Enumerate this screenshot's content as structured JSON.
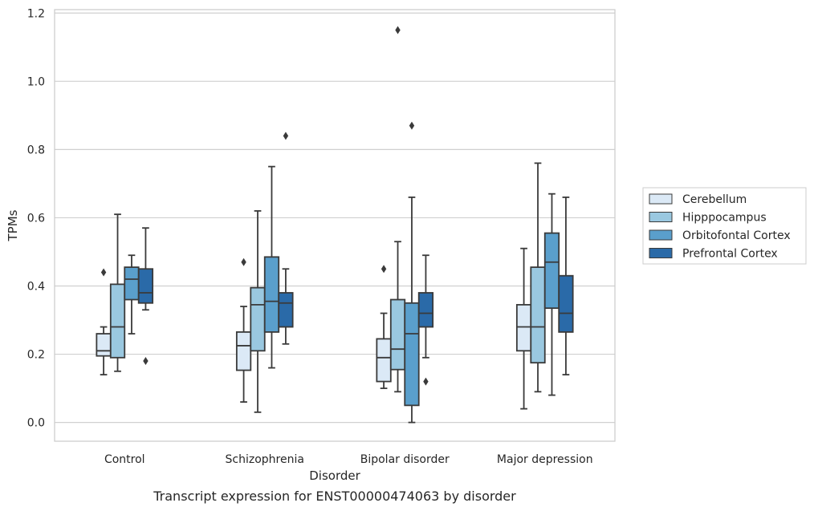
{
  "chart_data": {
    "type": "box",
    "title": "",
    "caption": "Transcript expression for ENST00000474063 by disorder",
    "xlabel": "Disorder",
    "ylabel": "TPMs",
    "ylim": [
      -0.055,
      1.21
    ],
    "yticks": [
      0.0,
      0.2,
      0.4,
      0.6,
      0.8,
      1.0,
      1.2
    ],
    "ytick_labels": [
      "0.0",
      "0.2",
      "0.4",
      "0.6",
      "0.8",
      "1.0",
      "1.2"
    ],
    "grid": "horizontal",
    "legend_position": "right, outside plot",
    "categories": [
      "Control",
      "Schizophrenia",
      "Bipolar disorder",
      "Major depression"
    ],
    "series": [
      {
        "name": "Cerebellum",
        "color": "#dbe9f6",
        "boxes": [
          {
            "whisker_low": 0.14,
            "q1": 0.195,
            "median": 0.21,
            "q3": 0.26,
            "whisker_high": 0.28,
            "outliers": [
              0.44
            ]
          },
          {
            "whisker_low": 0.06,
            "q1": 0.153,
            "median": 0.225,
            "q3": 0.265,
            "whisker_high": 0.34,
            "outliers": [
              0.47
            ]
          },
          {
            "whisker_low": 0.1,
            "q1": 0.12,
            "median": 0.19,
            "q3": 0.245,
            "whisker_high": 0.32,
            "outliers": [
              0.45
            ]
          },
          {
            "whisker_low": 0.04,
            "q1": 0.21,
            "median": 0.28,
            "q3": 0.345,
            "whisker_high": 0.51,
            "outliers": []
          }
        ]
      },
      {
        "name": "Hipppocampus",
        "color": "#9ac8e0",
        "boxes": [
          {
            "whisker_low": 0.15,
            "q1": 0.19,
            "median": 0.28,
            "q3": 0.405,
            "whisker_high": 0.61,
            "outliers": []
          },
          {
            "whisker_low": 0.03,
            "q1": 0.21,
            "median": 0.345,
            "q3": 0.395,
            "whisker_high": 0.62,
            "outliers": []
          },
          {
            "whisker_low": 0.09,
            "q1": 0.155,
            "median": 0.215,
            "q3": 0.36,
            "whisker_high": 0.53,
            "outliers": [
              1.15
            ]
          },
          {
            "whisker_low": 0.09,
            "q1": 0.175,
            "median": 0.28,
            "q3": 0.455,
            "whisker_high": 0.76,
            "outliers": []
          }
        ]
      },
      {
        "name": "Orbitofontal Cortex",
        "color": "#5a9fcc",
        "boxes": [
          {
            "whisker_low": 0.26,
            "q1": 0.36,
            "median": 0.42,
            "q3": 0.455,
            "whisker_high": 0.49,
            "outliers": []
          },
          {
            "whisker_low": 0.16,
            "q1": 0.265,
            "median": 0.355,
            "q3": 0.485,
            "whisker_high": 0.75,
            "outliers": []
          },
          {
            "whisker_low": 0.0,
            "q1": 0.05,
            "median": 0.26,
            "q3": 0.35,
            "whisker_high": 0.66,
            "outliers": [
              0.87
            ]
          },
          {
            "whisker_low": 0.08,
            "q1": 0.335,
            "median": 0.47,
            "q3": 0.555,
            "whisker_high": 0.67,
            "outliers": []
          }
        ]
      },
      {
        "name": "Prefrontal Cortex",
        "color": "#2a6aa8",
        "boxes": [
          {
            "whisker_low": 0.33,
            "q1": 0.35,
            "median": 0.38,
            "q3": 0.45,
            "whisker_high": 0.57,
            "outliers": [
              0.18
            ]
          },
          {
            "whisker_low": 0.23,
            "q1": 0.28,
            "median": 0.35,
            "q3": 0.38,
            "whisker_high": 0.45,
            "outliers": [
              0.84
            ]
          },
          {
            "whisker_low": 0.19,
            "q1": 0.28,
            "median": 0.32,
            "q3": 0.38,
            "whisker_high": 0.49,
            "outliers": [
              0.12
            ]
          },
          {
            "whisker_low": 0.14,
            "q1": 0.265,
            "median": 0.32,
            "q3": 0.43,
            "whisker_high": 0.66,
            "outliers": []
          }
        ]
      }
    ]
  }
}
